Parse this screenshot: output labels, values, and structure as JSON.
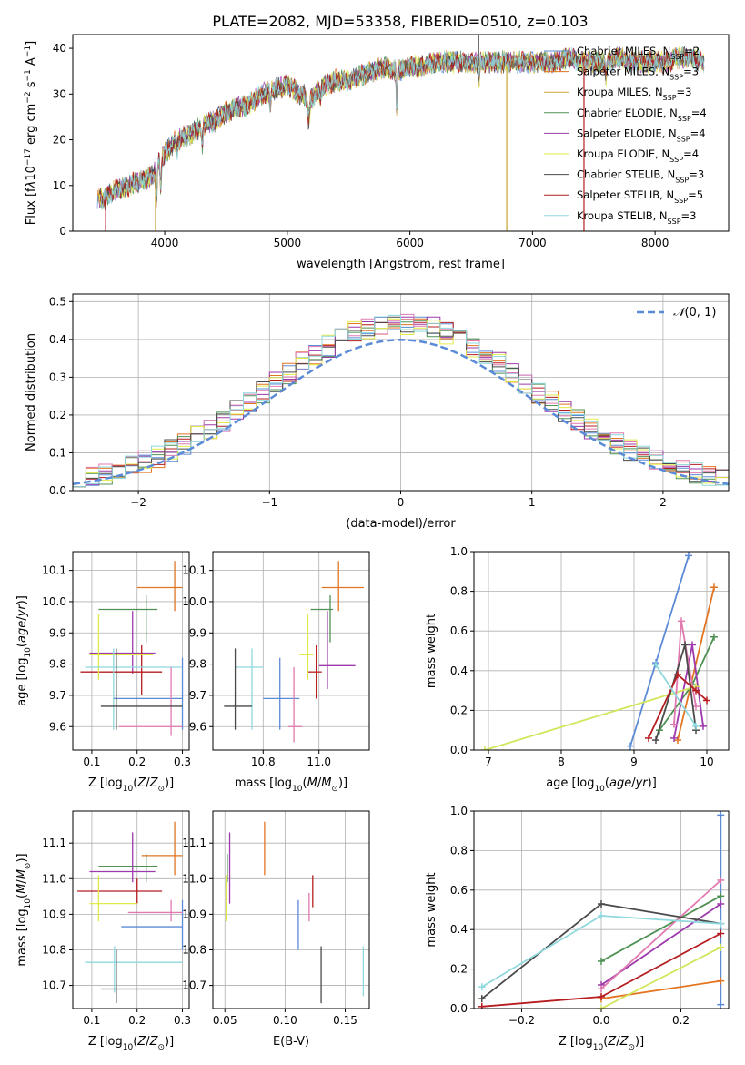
{
  "figure_title": "PLATE=2082, MJD=53358, FIBERID=0510, z=0.103",
  "colors": {
    "Chabrier MILES": "#5b8bd6",
    "Salpeter MILES": "#e27522",
    "Kroupa MILES": "#c9a531",
    "Chabrier ELODIE": "#4f9153",
    "Salpeter ELODIE": "#9d3aab",
    "Kroupa ELODIE": "#e2ea4a",
    "Chabrier STELIB": "#4a4a4a",
    "Salpeter STELIB": "#b61d21",
    "Kroupa STELIB": "#8fd8dd",
    "pink": "#e07ab0",
    "lime": "#d3e55b",
    "grid": "#b0b0b0"
  },
  "chart_data": [
    {
      "id": "spectrum",
      "type": "line",
      "title": "PLATE=2082, MJD=53358, FIBERID=0510, z=0.103",
      "xlabel": "wavelength [Angstrom, rest frame]",
      "ylabel": "Flux [f_λ 10^-17 erg cm^-2 s^-1 A^-1]",
      "xlim": [
        3250,
        8600
      ],
      "ylim": [
        0,
        43
      ],
      "xticks": [
        4000,
        5000,
        6000,
        7000,
        8000
      ],
      "yticks": [
        0,
        10,
        20,
        30,
        40
      ],
      "grid": false,
      "legend_position": "upper-right",
      "anchor_x": [
        3500,
        3600,
        3700,
        3800,
        3900,
        3950,
        4000,
        4100,
        4200,
        4300,
        4400,
        4500,
        4600,
        4700,
        4800,
        4900,
        5000,
        5100,
        5200,
        5300,
        5400,
        5500,
        5600,
        5700,
        5800,
        5900,
        6000,
        6100,
        6200,
        6300,
        6400,
        6500,
        6600,
        6700,
        6800,
        6900,
        7000,
        7100,
        7200,
        7300,
        7400,
        7500,
        7600,
        7700,
        7800,
        7900,
        8000,
        8100,
        8200,
        8300,
        8400
      ],
      "anchor_y": [
        7,
        9,
        10,
        11,
        12,
        15,
        17,
        20,
        21,
        23,
        24,
        26,
        27,
        28,
        30,
        31,
        32,
        30,
        29,
        32,
        33,
        33,
        34,
        35,
        36,
        35,
        36,
        36,
        37,
        37,
        37,
        37,
        37,
        37,
        37,
        37,
        37,
        37,
        37,
        38,
        37,
        37,
        37,
        38,
        37,
        37,
        37,
        37,
        38,
        38,
        37
      ],
      "series": [
        {
          "name": "Chabrier MILES",
          "n_ssp": "2"
        },
        {
          "name": "Salpeter MILES",
          "n_ssp": "3"
        },
        {
          "name": "Kroupa MILES",
          "n_ssp": "3"
        },
        {
          "name": "Chabrier ELODIE",
          "n_ssp": "4"
        },
        {
          "name": "Salpeter ELODIE",
          "n_ssp": "4"
        },
        {
          "name": "Kroupa ELODIE",
          "n_ssp": "4"
        },
        {
          "name": "Chabrier STELIB",
          "n_ssp": "3"
        },
        {
          "name": "Salpeter STELIB",
          "n_ssp": "5"
        },
        {
          "name": "Kroupa STELIB",
          "n_ssp": "3"
        }
      ]
    },
    {
      "id": "residuals",
      "type": "step-histogram",
      "xlabel": "(data-model)/error",
      "ylabel": "Normed distribution",
      "xlim": [
        -2.5,
        2.5
      ],
      "ylim": [
        0,
        0.52
      ],
      "xticks": [
        -2,
        -1,
        0,
        1,
        2
      ],
      "yticks": [
        0.0,
        0.1,
        0.2,
        0.3,
        0.4,
        0.5
      ],
      "grid": true,
      "legend": "N(0,1)",
      "legend_position": "upper-right",
      "gaussian": {
        "mean": 0,
        "sigma": 1
      }
    },
    {
      "id": "z-age",
      "type": "errorbar",
      "xlabel": "Z [log10(Z/Z☉)]",
      "ylabel": "age  [log10(age/yr)]",
      "xlim": [
        0.058,
        0.315
      ],
      "ylim": [
        9.525,
        10.16
      ],
      "xticks": [
        0.1,
        0.2,
        0.3
      ],
      "yticks": [
        9.6,
        9.7,
        9.8,
        9.9,
        10.0,
        10.1
      ],
      "grid": true,
      "points": [
        {
          "x": 0.283,
          "xlo": 0.2,
          "xhi": 0.3,
          "y": 10.045,
          "ylo": 9.97,
          "yhi": 10.13,
          "color": "#e27522"
        },
        {
          "x": 0.22,
          "xlo": 0.115,
          "xhi": 0.245,
          "y": 9.975,
          "ylo": 9.87,
          "yhi": 10.02,
          "color": "#4f9153"
        },
        {
          "x": 0.19,
          "xlo": 0.095,
          "xhi": 0.24,
          "y": 9.835,
          "ylo": 9.77,
          "yhi": 9.97,
          "color": "#9d3aab"
        },
        {
          "x": 0.21,
          "xlo": 0.075,
          "xhi": 0.255,
          "y": 9.775,
          "ylo": 9.7,
          "yhi": 9.86,
          "color": "#b61d21"
        },
        {
          "x": 0.115,
          "xlo": 0.095,
          "xhi": 0.235,
          "y": 9.83,
          "ylo": 9.75,
          "yhi": 9.96,
          "color": "#e2ea4a"
        },
        {
          "x": 0.148,
          "xlo": 0.085,
          "xhi": 0.298,
          "y": 9.79,
          "ylo": 9.59,
          "yhi": 9.85,
          "color": "#8fd8dd"
        },
        {
          "x": 0.3,
          "xlo": 0.148,
          "xhi": 0.3,
          "y": 9.69,
          "ylo": 9.59,
          "yhi": 9.82,
          "color": "#5b8bd6"
        },
        {
          "x": 0.275,
          "xlo": 0.16,
          "xhi": 0.3,
          "y": 9.6,
          "ylo": 9.57,
          "yhi": 9.79,
          "color": "#e07ab0"
        },
        {
          "x": 0.154,
          "xlo": 0.12,
          "xhi": 0.3,
          "y": 9.665,
          "ylo": 9.59,
          "yhi": 9.85,
          "color": "#4a4a4a"
        }
      ]
    },
    {
      "id": "mass-age",
      "type": "errorbar",
      "xlabel": "mass [log10(M/M☉)]",
      "ylabel": "",
      "xlim": [
        10.62,
        11.18
      ],
      "ylim": [
        9.525,
        10.16
      ],
      "xticks": [
        10.8,
        11.0
      ],
      "yticks": [
        9.6,
        9.7,
        9.8,
        9.9,
        10.0,
        10.1
      ],
      "grid": true,
      "points": [
        {
          "x": 11.07,
          "xlo": 11.01,
          "xhi": 11.16,
          "y": 10.045,
          "ylo": 9.97,
          "yhi": 10.13,
          "color": "#e27522"
        },
        {
          "x": 11.04,
          "xlo": 10.97,
          "xhi": 11.05,
          "y": 9.975,
          "ylo": 9.87,
          "yhi": 10.02,
          "color": "#4f9153"
        },
        {
          "x": 11.03,
          "xlo": 11.0,
          "xhi": 11.13,
          "y": 9.795,
          "ylo": 9.72,
          "yhi": 9.97,
          "color": "#9d3aab"
        },
        {
          "x": 10.99,
          "xlo": 10.96,
          "xhi": 11.01,
          "y": 9.775,
          "ylo": 9.69,
          "yhi": 9.86,
          "color": "#b61d21"
        },
        {
          "x": 10.96,
          "xlo": 10.93,
          "xhi": 10.98,
          "y": 9.83,
          "ylo": 9.75,
          "yhi": 9.96,
          "color": "#e2ea4a"
        },
        {
          "x": 10.76,
          "xlo": 10.7,
          "xhi": 10.8,
          "y": 9.79,
          "ylo": 9.59,
          "yhi": 9.85,
          "color": "#8fd8dd"
        },
        {
          "x": 10.86,
          "xlo": 10.8,
          "xhi": 10.93,
          "y": 9.69,
          "ylo": 9.59,
          "yhi": 9.82,
          "color": "#5b8bd6"
        },
        {
          "x": 10.91,
          "xlo": 10.89,
          "xhi": 10.94,
          "y": 9.6,
          "ylo": 9.55,
          "yhi": 9.79,
          "color": "#e07ab0"
        },
        {
          "x": 10.7,
          "xlo": 10.66,
          "xhi": 10.76,
          "y": 9.665,
          "ylo": 9.59,
          "yhi": 9.85,
          "color": "#4a4a4a"
        }
      ]
    },
    {
      "id": "age-weight",
      "type": "line",
      "xlabel": "age  [log10(age/yr)]",
      "ylabel": "mass weight",
      "xlim": [
        6.8,
        10.3
      ],
      "ylim": [
        0,
        1
      ],
      "xticks": [
        7,
        8,
        9,
        10
      ],
      "yticks": [
        0.0,
        0.2,
        0.4,
        0.6,
        0.8,
        1.0
      ],
      "grid": true,
      "series": [
        {
          "color": "#5b8bd6",
          "x": [
            8.95,
            9.3,
            9.75
          ],
          "y": [
            0.02,
            0.44,
            0.98
          ]
        },
        {
          "color": "#e27522",
          "x": [
            9.6,
            10.1
          ],
          "y": [
            0.05,
            0.82
          ]
        },
        {
          "color": "#4f9153",
          "x": [
            9.35,
            9.8,
            10.1
          ],
          "y": [
            0.1,
            0.33,
            0.57
          ]
        },
        {
          "color": "#9d3aab",
          "x": [
            9.55,
            9.8,
            9.95
          ],
          "y": [
            0.06,
            0.53,
            0.12
          ]
        },
        {
          "color": "#d3e55b",
          "x": [
            6.95,
            9.85
          ],
          "y": [
            0.0,
            0.32
          ]
        },
        {
          "color": "#e07ab0",
          "x": [
            9.55,
            9.65,
            9.85
          ],
          "y": [
            0.13,
            0.65,
            0.22
          ]
        },
        {
          "color": "#4a4a4a",
          "x": [
            9.3,
            9.7,
            9.85
          ],
          "y": [
            0.05,
            0.53,
            0.1
          ]
        },
        {
          "color": "#b61d21",
          "x": [
            9.2,
            9.6,
            9.85,
            10.0
          ],
          "y": [
            0.06,
            0.38,
            0.3,
            0.25
          ]
        },
        {
          "color": "#8fd8dd",
          "x": [
            9.3,
            9.85
          ],
          "y": [
            0.43,
            0.12
          ]
        }
      ]
    },
    {
      "id": "z-mass",
      "type": "errorbar",
      "xlabel": "Z [log10(Z/Z☉)]",
      "ylabel": "mass [log10(M/M☉)]",
      "xlim": [
        0.058,
        0.315
      ],
      "ylim": [
        10.635,
        11.19
      ],
      "xticks": [
        0.1,
        0.2,
        0.3
      ],
      "yticks": [
        10.7,
        10.8,
        10.9,
        11.0,
        11.1
      ],
      "grid": true,
      "points": [
        {
          "x": 0.283,
          "xlo": 0.21,
          "xhi": 0.3,
          "y": 11.065,
          "ylo": 11.01,
          "yhi": 11.16,
          "color": "#e27522"
        },
        {
          "x": 0.22,
          "xlo": 0.115,
          "xhi": 0.245,
          "y": 11.035,
          "ylo": 10.99,
          "yhi": 11.07,
          "color": "#4f9153"
        },
        {
          "x": 0.19,
          "xlo": 0.095,
          "xhi": 0.24,
          "y": 11.02,
          "ylo": 10.99,
          "yhi": 11.13,
          "color": "#9d3aab"
        },
        {
          "x": 0.2,
          "xlo": 0.068,
          "xhi": 0.255,
          "y": 10.965,
          "ylo": 10.93,
          "yhi": 11.0,
          "color": "#b61d21"
        },
        {
          "x": 0.115,
          "xlo": 0.095,
          "xhi": 0.2,
          "y": 10.93,
          "ylo": 10.88,
          "yhi": 11.01,
          "color": "#e2ea4a"
        },
        {
          "x": 0.15,
          "xlo": 0.085,
          "xhi": 0.3,
          "y": 10.765,
          "ylo": 10.68,
          "yhi": 10.81,
          "color": "#8fd8dd"
        },
        {
          "x": 0.3,
          "xlo": 0.165,
          "xhi": 0.3,
          "y": 10.865,
          "ylo": 10.8,
          "yhi": 10.94,
          "color": "#5b8bd6"
        },
        {
          "x": 0.275,
          "xlo": 0.18,
          "xhi": 0.3,
          "y": 10.905,
          "ylo": 10.88,
          "yhi": 10.94,
          "color": "#e07ab0"
        },
        {
          "x": 0.154,
          "xlo": 0.12,
          "xhi": 0.3,
          "y": 10.69,
          "ylo": 10.65,
          "yhi": 10.8,
          "color": "#4a4a4a"
        }
      ]
    },
    {
      "id": "ebv-mass",
      "type": "errorbar",
      "xlabel": "E(B-V)",
      "ylabel": "",
      "xlim": [
        0.04,
        0.17
      ],
      "ylim": [
        10.635,
        11.19
      ],
      "xticks": [
        0.05,
        0.1,
        0.15
      ],
      "yticks": [
        10.7,
        10.8,
        10.9,
        11.0,
        11.1
      ],
      "grid": true,
      "points": [
        {
          "x": 0.083,
          "y": 11.065,
          "ylo": 11.01,
          "yhi": 11.16,
          "color": "#e27522"
        },
        {
          "x": 0.052,
          "y": 11.035,
          "ylo": 10.99,
          "yhi": 11.07,
          "color": "#4f9153"
        },
        {
          "x": 0.054,
          "y": 11.02,
          "ylo": 10.93,
          "yhi": 11.13,
          "color": "#9d3aab"
        },
        {
          "x": 0.123,
          "y": 10.965,
          "ylo": 10.92,
          "yhi": 11.01,
          "color": "#b61d21"
        },
        {
          "x": 0.051,
          "y": 10.93,
          "ylo": 10.88,
          "yhi": 11.01,
          "color": "#e2ea4a"
        },
        {
          "x": 0.165,
          "y": 10.765,
          "ylo": 10.67,
          "yhi": 10.81,
          "color": "#8fd8dd"
        },
        {
          "x": 0.111,
          "y": 10.865,
          "ylo": 10.8,
          "yhi": 10.94,
          "color": "#5b8bd6"
        },
        {
          "x": 0.12,
          "y": 10.905,
          "ylo": 10.88,
          "yhi": 10.96,
          "color": "#e07ab0"
        },
        {
          "x": 0.13,
          "y": 10.69,
          "ylo": 10.65,
          "yhi": 10.81,
          "color": "#4a4a4a"
        }
      ]
    },
    {
      "id": "z-weight",
      "type": "line",
      "xlabel": "Z [log10(Z/Z☉)]",
      "ylabel": "mass weight",
      "xlim": [
        -0.32,
        0.32
      ],
      "ylim": [
        0,
        1
      ],
      "xticks": [
        -0.2,
        0.0,
        0.2
      ],
      "yticks": [
        0.0,
        0.2,
        0.4,
        0.6,
        0.8,
        1.0
      ],
      "grid": true,
      "series": [
        {
          "color": "#5b8bd6",
          "x": [
            0.3,
            0.3
          ],
          "y": [
            0.02,
            0.98
          ]
        },
        {
          "color": "#e27522",
          "x": [
            0.0,
            0.3
          ],
          "y": [
            0.05,
            0.14
          ]
        },
        {
          "color": "#4f9153",
          "x": [
            0.0,
            0.3
          ],
          "y": [
            0.24,
            0.57
          ]
        },
        {
          "color": "#9d3aab",
          "x": [
            0.0,
            0.3
          ],
          "y": [
            0.12,
            0.53
          ]
        },
        {
          "color": "#d3e55b",
          "x": [
            0.0,
            0.3
          ],
          "y": [
            0.0,
            0.31
          ]
        },
        {
          "color": "#e07ab0",
          "x": [
            0.0,
            0.3
          ],
          "y": [
            0.1,
            0.65
          ]
        },
        {
          "color": "#4a4a4a",
          "x": [
            -0.3,
            0.0,
            0.3
          ],
          "y": [
            0.05,
            0.53,
            0.43
          ]
        },
        {
          "color": "#b61d21",
          "x": [
            -0.3,
            0.0,
            0.3
          ],
          "y": [
            0.01,
            0.06,
            0.38
          ]
        },
        {
          "color": "#8fd8dd",
          "x": [
            -0.3,
            0.0,
            0.3
          ],
          "y": [
            0.11,
            0.47,
            0.43
          ]
        }
      ]
    }
  ]
}
